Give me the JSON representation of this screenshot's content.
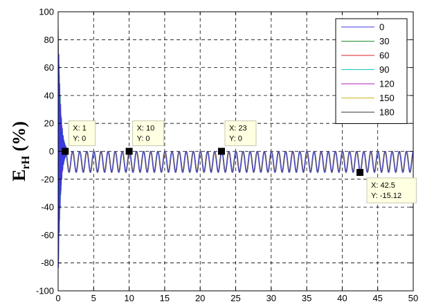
{
  "chart_data": {
    "type": "line",
    "title": "",
    "xlabel": "",
    "ylabel": {
      "main": "E",
      "sub": "rH",
      "unit": "(%)"
    },
    "xlim": [
      0,
      50
    ],
    "ylim": [
      -100,
      100
    ],
    "xticks": [
      0,
      5,
      10,
      15,
      20,
      25,
      30,
      35,
      40,
      45,
      50
    ],
    "yticks": [
      -100,
      -80,
      -60,
      -40,
      -20,
      0,
      20,
      40,
      60,
      80,
      100
    ],
    "grid": true,
    "legend_position": "top-right",
    "series": [
      {
        "name": "0",
        "color": "#3a3ae0"
      },
      {
        "name": "30",
        "color": "#1f8a2a"
      },
      {
        "name": "60",
        "color": "#e0202a"
      },
      {
        "name": "90",
        "color": "#17c2c2"
      },
      {
        "name": "120",
        "color": "#b51bb5"
      },
      {
        "name": "150",
        "color": "#c9b51a"
      },
      {
        "name": "180",
        "color": "#333333"
      }
    ],
    "oscillation": {
      "period": 1.0,
      "upper": 0,
      "lower": -15.12
    },
    "data_tips": [
      {
        "x": 1,
        "y": 0,
        "x_text": "X: 1",
        "y_text": "Y: 0",
        "placement": "above-right"
      },
      {
        "x": 10,
        "y": 0,
        "x_text": "X: 10",
        "y_text": "Y: 0",
        "placement": "above-right"
      },
      {
        "x": 23,
        "y": 0,
        "x_text": "X: 23",
        "y_text": "Y: 0",
        "placement": "above-right"
      },
      {
        "x": 42.5,
        "y": -15.12,
        "x_text": "X: 42.5",
        "y_text": "Y: -15.12",
        "placement": "below-right"
      }
    ]
  }
}
